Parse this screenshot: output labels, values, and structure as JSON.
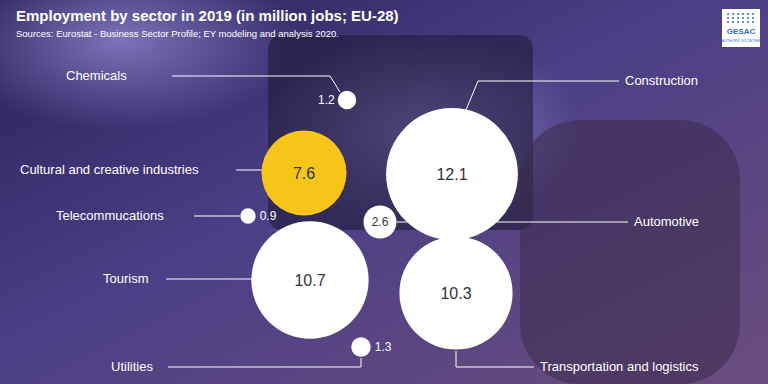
{
  "chart_data": {
    "type": "bubble",
    "title": "Employment by sector in 2019 (in million jobs; EU-28)",
    "subtitle": "Sources: Eurostat - Business Sector Profile; EY modeling and analysis 2020.",
    "categories": [
      "Chemicals",
      "Construction",
      "Cultural and creative industries",
      "Telecommucations",
      "Automotive",
      "Tourism",
      "Transportation and logistics",
      "Utilities"
    ],
    "values": [
      1.2,
      12.1,
      7.6,
      0.9,
      2.6,
      10.7,
      10.3,
      1.3
    ],
    "colors": [
      "#ffffff",
      "#ffffff",
      "#f6c518",
      "#ffffff",
      "#ffffff",
      "#ffffff",
      "#ffffff",
      "#ffffff"
    ],
    "data_labels": true,
    "annotations": [
      "GESAC",
      "AUTHORS' SOCIETIES"
    ]
  }
}
